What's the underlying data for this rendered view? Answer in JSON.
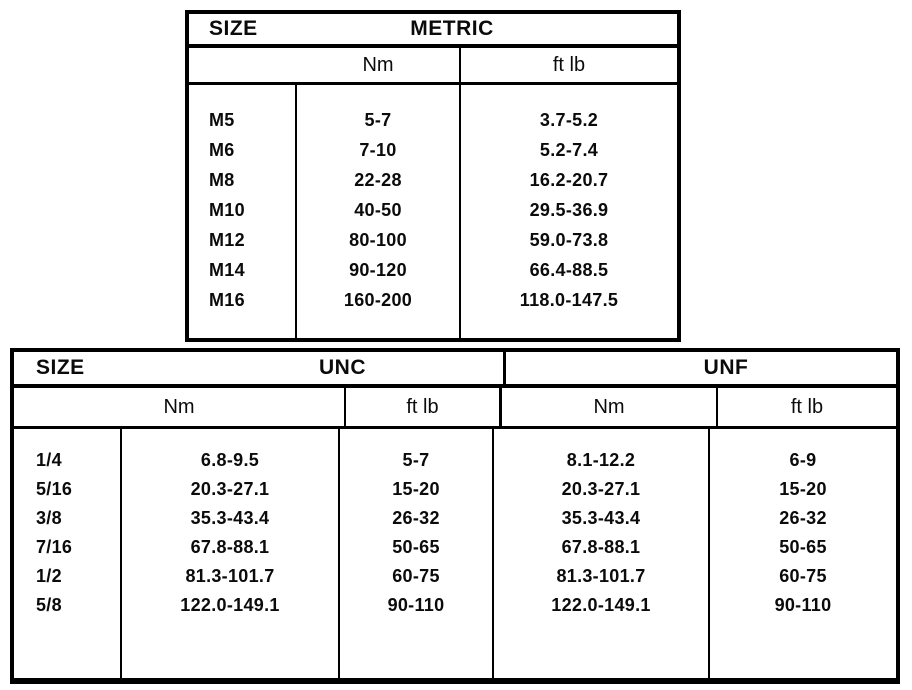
{
  "page": {
    "background_color": "#ffffff",
    "ink_color": "#0b0b0b"
  },
  "metric_table": {
    "size_header": "SIZE",
    "group_header": "METRIC",
    "unit_headers": [
      "Nm",
      "ft lb"
    ],
    "rows": [
      {
        "size": "M5",
        "nm": "5-7",
        "ftlb": "3.7-5.2"
      },
      {
        "size": "M6",
        "nm": "7-10",
        "ftlb": "5.2-7.4"
      },
      {
        "size": "M8",
        "nm": "22-28",
        "ftlb": "16.2-20.7"
      },
      {
        "size": "M10",
        "nm": "40-50",
        "ftlb": "29.5-36.9"
      },
      {
        "size": "M12",
        "nm": "80-100",
        "ftlb": "59.0-73.8"
      },
      {
        "size": "M14",
        "nm": "90-120",
        "ftlb": "66.4-88.5"
      },
      {
        "size": "M16",
        "nm": "160-200",
        "ftlb": "118.0-147.5"
      }
    ]
  },
  "imperial_table": {
    "size_header": "SIZE",
    "group_headers": [
      "UNC",
      "UNF"
    ],
    "unit_headers": [
      "Nm",
      "ft lb",
      "Nm",
      "ft lb"
    ],
    "rows": [
      {
        "size": "1/4",
        "unc_nm": "6.8-9.5",
        "unc_ftlb": "5-7",
        "unf_nm": "8.1-12.2",
        "unf_ftlb": "6-9"
      },
      {
        "size": "5/16",
        "unc_nm": "20.3-27.1",
        "unc_ftlb": "15-20",
        "unf_nm": "20.3-27.1",
        "unf_ftlb": "15-20"
      },
      {
        "size": "3/8",
        "unc_nm": "35.3-43.4",
        "unc_ftlb": "26-32",
        "unf_nm": "35.3-43.4",
        "unf_ftlb": "26-32"
      },
      {
        "size": "7/16",
        "unc_nm": "67.8-88.1",
        "unc_ftlb": "50-65",
        "unf_nm": "67.8-88.1",
        "unf_ftlb": "50-65"
      },
      {
        "size": "1/2",
        "unc_nm": "81.3-101.7",
        "unc_ftlb": "60-75",
        "unf_nm": "81.3-101.7",
        "unf_ftlb": "60-75"
      },
      {
        "size": "5/8",
        "unc_nm": "122.0-149.1",
        "unc_ftlb": "90-110",
        "unf_nm": "122.0-149.1",
        "unf_ftlb": "90-110"
      }
    ]
  }
}
